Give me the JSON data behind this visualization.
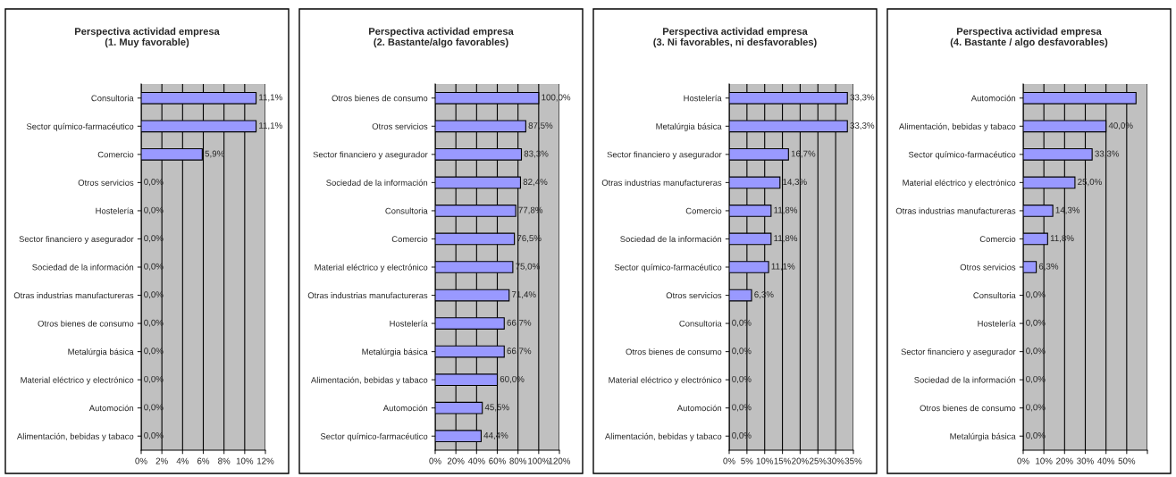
{
  "chart_data": [
    {
      "type": "bar",
      "orientation": "horizontal",
      "title": "Perspectiva actividad empresa\n(1. Muy favorable)",
      "categories": [
        "Consultoria",
        "Sector químico-farmacéutico",
        "Comercio",
        "Otros servicios",
        "Hostelería",
        "Sector financiero y asegurador",
        "Sociedad de la información",
        "Otras industrias manufactureras",
        "Otros bienes de consumo",
        "Metalúrgia básica",
        "Material eléctrico y electrónico",
        "Automoción",
        "Alimentación, bebidas y tabaco"
      ],
      "values": [
        11.1,
        11.1,
        5.9,
        0,
        0,
        0,
        0,
        0,
        0,
        0,
        0,
        0,
        0
      ],
      "value_labels": [
        "11,1%",
        "11,1%",
        "5,9%",
        "0,0%",
        "0,0%",
        "0,0%",
        "0,0%",
        "0,0%",
        "0,0%",
        "0,0%",
        "0,0%",
        "0,0%",
        "0,0%"
      ],
      "color": "#9999ff",
      "xlim": [
        0,
        12
      ],
      "xticks": [
        {
          "value": 0,
          "label": "0%"
        },
        {
          "value": 2,
          "label": "2%"
        },
        {
          "value": 4,
          "label": "4%"
        },
        {
          "value": 6,
          "label": "6%"
        },
        {
          "value": 8,
          "label": "8%"
        },
        {
          "value": 10,
          "label": "10%"
        },
        {
          "value": 12,
          "label": "12%"
        }
      ],
      "grid": "x"
    },
    {
      "type": "bar",
      "orientation": "horizontal",
      "title": "Perspectiva actividad empresa\n(2. Bastante/algo favorables)",
      "categories": [
        "Otros bienes de consumo",
        "Otros servicios",
        "Sector financiero y asegurador",
        "Sociedad de la información",
        "Consultoria",
        "Comercio",
        "Material eléctrico y electrónico",
        "Otras industrias manufactureras",
        "Hostelería",
        "Metalúrgia básica",
        "Alimentación, bebidas y tabaco",
        "Automoción",
        "Sector químico-farmacéutico"
      ],
      "values": [
        100.0,
        87.5,
        83.3,
        82.4,
        77.8,
        76.5,
        75.0,
        71.4,
        66.7,
        66.7,
        60.0,
        45.5,
        44.4
      ],
      "value_labels": [
        "100,0%",
        "87,5%",
        "83,3%",
        "82,4%",
        "77,8%",
        "76,5%",
        "75,0%",
        "71,4%",
        "66,7%",
        "66,7%",
        "60,0%",
        "45,5%",
        "44,4%"
      ],
      "color": "#9999ff",
      "xlim": [
        0,
        120
      ],
      "xticks": [
        {
          "value": 0,
          "label": "0%"
        },
        {
          "value": 20,
          "label": "20%"
        },
        {
          "value": 40,
          "label": "40%"
        },
        {
          "value": 60,
          "label": "60%"
        },
        {
          "value": 80,
          "label": "80%"
        },
        {
          "value": 100,
          "label": "100%"
        },
        {
          "value": 120,
          "label": "120%"
        }
      ],
      "grid": "x"
    },
    {
      "type": "bar",
      "orientation": "horizontal",
      "title": "Perspectiva actividad empresa\n(3. Ni favorables, ni desfavorables)",
      "categories": [
        "Hostelería",
        "Metalúrgia básica",
        "Sector financiero y asegurador",
        "Otras industrias manufactureras",
        "Comercio",
        "Sociedad de la información",
        "Sector químico-farmacéutico",
        "Otros servicios",
        "Consultoria",
        "Otros bienes de consumo",
        "Material eléctrico y electrónico",
        "Automoción",
        "Alimentación, bebidas y tabaco"
      ],
      "values": [
        33.3,
        33.3,
        16.7,
        14.3,
        11.8,
        11.8,
        11.1,
        6.3,
        0,
        0,
        0,
        0,
        0
      ],
      "value_labels": [
        "33,3%",
        "33,3%",
        "16,7%",
        "14,3%",
        "11,8%",
        "11,8%",
        "11,1%",
        "6,3%",
        "0,0%",
        "0,0%",
        "0,0%",
        "0,0%",
        "0,0%"
      ],
      "color": "#9999ff",
      "xlim": [
        0,
        35
      ],
      "xticks": [
        {
          "value": 0,
          "label": "0%"
        },
        {
          "value": 5,
          "label": "5%"
        },
        {
          "value": 10,
          "label": "10%"
        },
        {
          "value": 15,
          "label": "15%"
        },
        {
          "value": 20,
          "label": "20%"
        },
        {
          "value": 25,
          "label": "25%"
        },
        {
          "value": 30,
          "label": "30%"
        },
        {
          "value": 35,
          "label": "35%"
        }
      ],
      "grid": "x"
    },
    {
      "type": "bar",
      "orientation": "horizontal",
      "title": "Perspectiva actividad empresa\n(4. Bastante / algo desfavorables)",
      "categories": [
        "Automoción",
        "Alimentación, bebidas y tabaco",
        "Sector químico-farmacéutico",
        "Material eléctrico y electrónico",
        "Otras industrias manufactureras",
        "Comercio",
        "Otros servicios",
        "Consultoria",
        "Hostelería",
        "Sector financiero y asegurador",
        "Sociedad de la información",
        "Otros bienes de consumo",
        "Metalúrgia básica"
      ],
      "values": [
        54.5,
        40.0,
        33.3,
        25.0,
        14.3,
        11.8,
        6.3,
        0,
        0,
        0,
        0,
        0,
        0
      ],
      "value_labels": [
        null,
        "40,0%",
        "33,3%",
        "25,0%",
        "14,3%",
        "11,8%",
        "6,3%",
        "0,0%",
        "0,0%",
        "0,0%",
        "0,0%",
        "0,0%",
        "0,0%"
      ],
      "color": "#9999ff",
      "xlim": [
        0,
        60
      ],
      "xticks": [
        {
          "value": 0,
          "label": "0%"
        },
        {
          "value": 10,
          "label": "10%"
        },
        {
          "value": 20,
          "label": "20%"
        },
        {
          "value": 30,
          "label": "30%"
        },
        {
          "value": 40,
          "label": "40%"
        },
        {
          "value": 50,
          "label": "50%"
        },
        {
          "value": 60,
          "label": null
        }
      ],
      "grid": "x"
    }
  ]
}
